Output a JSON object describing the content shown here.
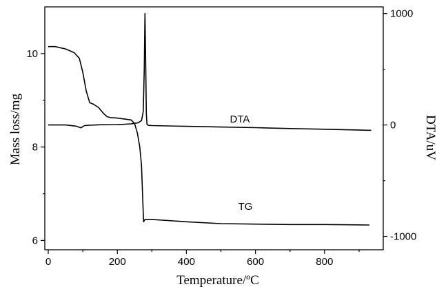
{
  "chart_data": {
    "type": "line",
    "xlabel": "Temperature/ºC",
    "ylabel_left": "Mass loss/mg",
    "ylabel_right": "DTA/uV",
    "xlim": [
      -10,
      970
    ],
    "ylim_left": [
      5.8,
      11.0
    ],
    "ylim_right": [
      -1120,
      1060
    ],
    "xticks": [
      0,
      200,
      400,
      600,
      800
    ],
    "yticks_left": [
      6,
      8,
      10
    ],
    "yticks_right": [
      -1000,
      0,
      1000
    ],
    "grid": false,
    "series": [
      {
        "name": "TG",
        "axis": "left",
        "x": [
          0,
          20,
          50,
          75,
          90,
          100,
          110,
          120,
          130,
          145,
          160,
          170,
          180,
          200,
          220,
          240,
          250,
          258,
          265,
          270,
          273,
          276,
          280,
          300,
          400,
          500,
          600,
          700,
          800,
          930
        ],
        "y": [
          10.15,
          10.15,
          10.1,
          10.02,
          9.9,
          9.6,
          9.2,
          8.95,
          8.92,
          8.85,
          8.72,
          8.65,
          8.63,
          8.62,
          8.6,
          8.58,
          8.5,
          8.3,
          8.0,
          7.6,
          7.0,
          6.4,
          6.45,
          6.45,
          6.4,
          6.36,
          6.35,
          6.34,
          6.34,
          6.33
        ]
      },
      {
        "name": "DTA",
        "axis": "right",
        "x": [
          0,
          50,
          80,
          95,
          100,
          105,
          120,
          150,
          200,
          240,
          260,
          270,
          275,
          278,
          280,
          282,
          284,
          286,
          288,
          290,
          300,
          400,
          500,
          600,
          700,
          800,
          935
        ],
        "y": [
          0,
          0,
          -10,
          -25,
          -15,
          -5,
          -2,
          2,
          3,
          10,
          20,
          40,
          120,
          500,
          1000,
          600,
          100,
          5,
          0,
          -3,
          -5,
          -12,
          -18,
          -24,
          -32,
          -38,
          -48
        ]
      }
    ],
    "annotations": [
      "DTA",
      "TG"
    ]
  }
}
